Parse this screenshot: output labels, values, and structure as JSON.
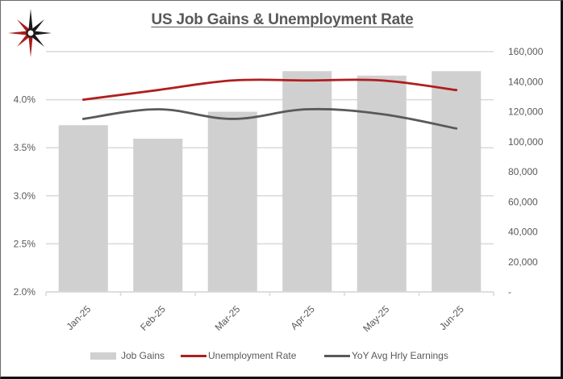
{
  "title": "US Job Gains & Unemployment Rate",
  "logo": {
    "icon": "compass-star-icon",
    "colors": {
      "red": "#a61c1c",
      "black": "#1a1a1a"
    }
  },
  "colors": {
    "bars": "#d0d0d0",
    "unemployment_line": "#b01e1e",
    "earnings_line": "#595959",
    "gridline": "#d9d9d9",
    "axis_text": "#595959"
  },
  "left_axis": {
    "ticks": [
      "2.0%",
      "2.5%",
      "3.0%",
      "3.5%",
      "4.0%",
      ""
    ],
    "values": [
      2.0,
      2.5,
      3.0,
      3.5,
      4.0,
      4.5
    ]
  },
  "right_axis": {
    "ticks": [
      "-",
      "20,000",
      "40,000",
      "60,000",
      "80,000",
      "100,000",
      "120,000",
      "140,000",
      "160,000"
    ],
    "values": [
      0,
      20000,
      40000,
      60000,
      80000,
      100000,
      120000,
      140000,
      160000
    ]
  },
  "legend": [
    {
      "label": "Job Gains",
      "type": "bar"
    },
    {
      "label": "Unemployment Rate",
      "type": "line"
    },
    {
      "label": "YoY Avg Hrly Earnings",
      "type": "line"
    }
  ],
  "chart_data": {
    "type": "bar",
    "title": "US Job Gains & Unemployment Rate",
    "xlabel": "",
    "ylabel": "",
    "categories": [
      "Jan-25",
      "Feb-25",
      "Mar-25",
      "Apr-25",
      "May-25",
      "Jun-25"
    ],
    "series": [
      {
        "name": "Job Gains",
        "type": "bar",
        "axis": "right",
        "values": [
          111000,
          102000,
          120000,
          147000,
          144000,
          147000
        ]
      },
      {
        "name": "Unemployment Rate",
        "type": "line",
        "axis": "left",
        "unit": "%",
        "values": [
          4.0,
          4.1,
          4.2,
          4.2,
          4.2,
          4.1
        ]
      },
      {
        "name": "YoY Avg Hrly Earnings",
        "type": "line",
        "axis": "left",
        "unit": "%",
        "values": [
          3.8,
          3.9,
          3.8,
          3.9,
          3.85,
          3.7
        ]
      }
    ],
    "left_ylim": [
      2.0,
      4.5
    ],
    "right_ylim": [
      0,
      160000
    ],
    "grid": true,
    "legend_position": "bottom",
    "x_tick_rotation": -45
  }
}
